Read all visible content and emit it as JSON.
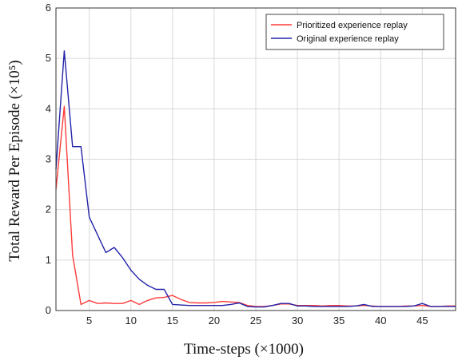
{
  "chart_data": {
    "type": "line",
    "title": "",
    "xlabel": "Time-steps (×1000)",
    "ylabel": "Total Reward Per Episode (×10⁵)",
    "xlim": [
      1,
      49
    ],
    "ylim": [
      0,
      6
    ],
    "xticks": [
      5,
      10,
      15,
      20,
      25,
      30,
      35,
      40,
      45
    ],
    "yticks": [
      0,
      1,
      2,
      3,
      4,
      5,
      6
    ],
    "grid": true,
    "legend_position": "top-right",
    "series": [
      {
        "name": "Prioritized experience replay",
        "color": "#ff3b3b",
        "x": [
          1,
          2,
          3,
          4,
          5,
          6,
          7,
          8,
          9,
          10,
          11,
          12,
          13,
          14,
          15,
          16,
          17,
          18,
          19,
          20,
          21,
          22,
          23,
          24,
          25,
          26,
          27,
          28,
          29,
          30,
          31,
          32,
          33,
          34,
          35,
          36,
          37,
          38,
          39,
          40,
          41,
          42,
          43,
          44,
          45,
          46,
          47,
          48,
          49
        ],
        "y": [
          2.4,
          4.05,
          1.1,
          0.12,
          0.2,
          0.14,
          0.15,
          0.14,
          0.14,
          0.2,
          0.12,
          0.2,
          0.25,
          0.26,
          0.3,
          0.22,
          0.16,
          0.15,
          0.15,
          0.16,
          0.18,
          0.17,
          0.16,
          0.1,
          0.08,
          0.08,
          0.1,
          0.13,
          0.13,
          0.1,
          0.1,
          0.1,
          0.09,
          0.1,
          0.1,
          0.09,
          0.09,
          0.1,
          0.09,
          0.08,
          0.08,
          0.08,
          0.09,
          0.09,
          0.1,
          0.08,
          0.08,
          0.09,
          0.09
        ]
      },
      {
        "name": "Original experience replay",
        "color": "#2323a8",
        "x": [
          1,
          2,
          3,
          4,
          5,
          6,
          7,
          8,
          9,
          10,
          11,
          12,
          13,
          14,
          15,
          16,
          17,
          18,
          19,
          20,
          21,
          22,
          23,
          24,
          25,
          26,
          27,
          28,
          29,
          30,
          31,
          32,
          33,
          34,
          35,
          36,
          37,
          38,
          39,
          40,
          41,
          42,
          43,
          44,
          45,
          46,
          47,
          48,
          49
        ],
        "y": [
          2.8,
          5.15,
          3.25,
          3.25,
          1.85,
          1.5,
          1.15,
          1.25,
          1.05,
          0.8,
          0.62,
          0.5,
          0.42,
          0.42,
          0.12,
          0.11,
          0.1,
          0.1,
          0.1,
          0.1,
          0.1,
          0.12,
          0.15,
          0.08,
          0.07,
          0.07,
          0.1,
          0.14,
          0.14,
          0.09,
          0.09,
          0.08,
          0.08,
          0.08,
          0.08,
          0.08,
          0.09,
          0.12,
          0.08,
          0.08,
          0.08,
          0.08,
          0.08,
          0.09,
          0.14,
          0.08,
          0.08,
          0.08,
          0.08
        ]
      }
    ]
  }
}
